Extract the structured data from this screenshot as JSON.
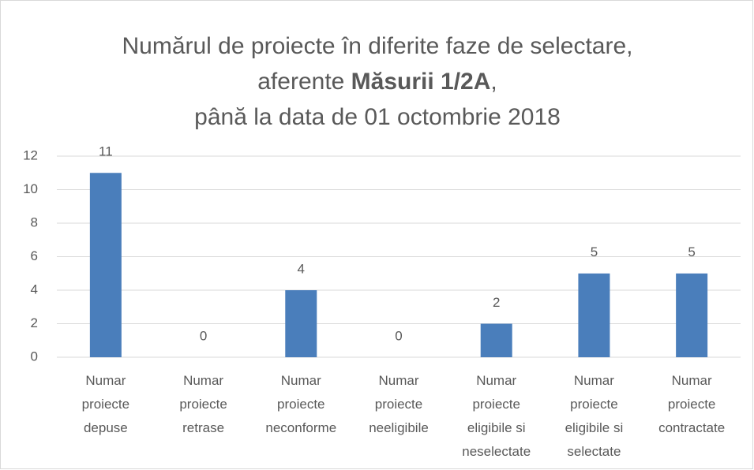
{
  "chart_data": {
    "type": "bar",
    "title": [
      [
        "Numărul de proiecte în diferite faze de selectare,"
      ],
      [
        "aferente ",
        "Măsurii 1/2A",
        ","
      ],
      [
        "până la data de 01 octombrie 2018"
      ]
    ],
    "categories": [
      [
        "Numar",
        "proiecte",
        "depuse"
      ],
      [
        "Numar",
        "proiecte",
        "retrase"
      ],
      [
        "Numar",
        "proiecte",
        "neconforme"
      ],
      [
        "Numar",
        "proiecte",
        "neeligibile"
      ],
      [
        "Numar",
        "proiecte",
        "eligibile si",
        "neselectate"
      ],
      [
        "Numar",
        "proiecte",
        "eligibile si",
        "selectate"
      ],
      [
        "Numar",
        "proiecte",
        "contractate"
      ]
    ],
    "values": [
      11,
      0,
      4,
      0,
      2,
      5,
      5
    ],
    "color": "#4a7ebb",
    "ylim": [
      0,
      12
    ],
    "yticks": [
      0,
      2,
      4,
      6,
      8,
      10,
      12
    ],
    "grid": true
  }
}
